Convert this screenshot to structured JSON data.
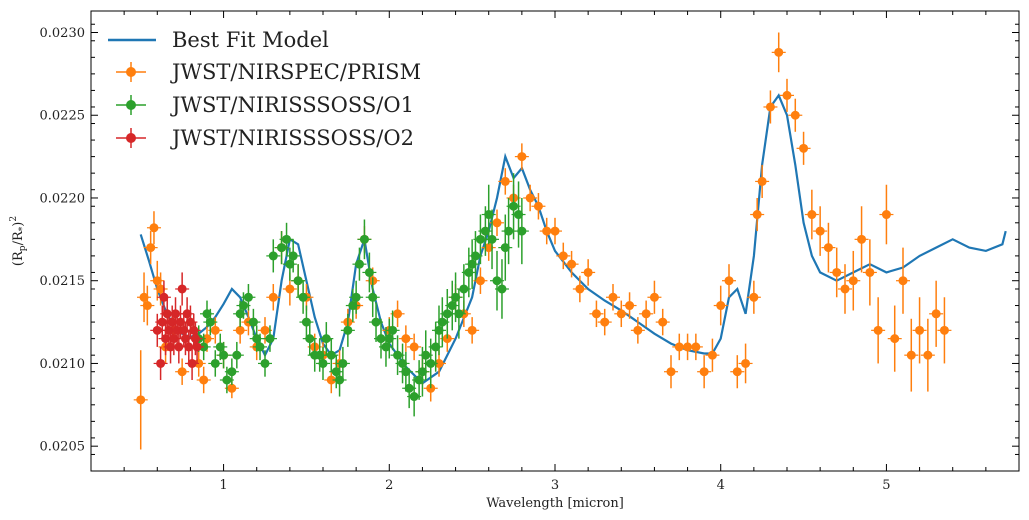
{
  "chart_data": {
    "type": "scatter",
    "xlabel": "Wavelength [micron]",
    "ylabel_main": "(R",
    "ylabel_sub_p": "p",
    "ylabel_mid": "/R",
    "ylabel_sub_star": "*",
    "ylabel_end": ")",
    "ylabel_sup": "2",
    "xlim": [
      0.2,
      5.8
    ],
    "ylim": [
      0.02035,
      0.02313
    ],
    "x_ticks": [
      1,
      2,
      3,
      4,
      5
    ],
    "x_tick_labels": [
      "1",
      "2",
      "3",
      "4",
      "5"
    ],
    "y_ticks": [
      0.0205,
      0.021,
      0.0215,
      0.022,
      0.0225,
      0.023
    ],
    "y_tick_labels": [
      "0.0205",
      "0.0210",
      "0.0215",
      "0.0220",
      "0.0225",
      "0.0230"
    ],
    "grid": false,
    "legend_position": "top-left",
    "model": {
      "name": "Best Fit Model",
      "color": "#1f77b4",
      "x": [
        0.5,
        0.55,
        0.6,
        0.65,
        0.7,
        0.75,
        0.8,
        0.85,
        0.9,
        0.95,
        1.0,
        1.05,
        1.1,
        1.15,
        1.2,
        1.25,
        1.3,
        1.35,
        1.4,
        1.45,
        1.5,
        1.55,
        1.6,
        1.65,
        1.7,
        1.75,
        1.8,
        1.85,
        1.9,
        1.95,
        2.0,
        2.1,
        2.2,
        2.3,
        2.4,
        2.5,
        2.55,
        2.6,
        2.65,
        2.7,
        2.75,
        2.8,
        2.85,
        2.9,
        2.95,
        3.0,
        3.1,
        3.2,
        3.3,
        3.4,
        3.5,
        3.6,
        3.7,
        3.8,
        3.9,
        3.95,
        4.0,
        4.05,
        4.1,
        4.15,
        4.2,
        4.25,
        4.3,
        4.35,
        4.4,
        4.45,
        4.5,
        4.55,
        4.6,
        4.7,
        4.8,
        4.9,
        5.0,
        5.1,
        5.2,
        5.3,
        5.4,
        5.5,
        5.6,
        5.7,
        5.72
      ],
      "y": [
        0.02178,
        0.02162,
        0.02145,
        0.02132,
        0.02122,
        0.02118,
        0.02116,
        0.02118,
        0.02122,
        0.02128,
        0.02136,
        0.02145,
        0.0214,
        0.02128,
        0.02115,
        0.02105,
        0.02115,
        0.0215,
        0.02175,
        0.02172,
        0.0215,
        0.02128,
        0.02112,
        0.02105,
        0.02108,
        0.02125,
        0.0216,
        0.02175,
        0.02145,
        0.02125,
        0.02112,
        0.02098,
        0.02088,
        0.02095,
        0.02115,
        0.0214,
        0.02165,
        0.0218,
        0.022,
        0.02225,
        0.02212,
        0.02218,
        0.02205,
        0.02195,
        0.0218,
        0.02168,
        0.02155,
        0.02145,
        0.02138,
        0.02132,
        0.02125,
        0.02118,
        0.02112,
        0.02108,
        0.02106,
        0.02106,
        0.02115,
        0.0214,
        0.02145,
        0.0213,
        0.02165,
        0.0222,
        0.02255,
        0.02262,
        0.0225,
        0.0222,
        0.02185,
        0.02165,
        0.02155,
        0.0215,
        0.02155,
        0.0216,
        0.02155,
        0.02158,
        0.02165,
        0.0217,
        0.02175,
        0.0217,
        0.02168,
        0.02172,
        0.0218
      ]
    },
    "series": [
      {
        "name": "JWST/NIRSPEC/PRISM",
        "color": "#ff7f0e",
        "x": [
          0.5,
          0.52,
          0.54,
          0.56,
          0.58,
          0.6,
          0.62,
          0.65,
          0.7,
          0.75,
          0.85,
          0.88,
          0.9,
          0.95,
          1.0,
          1.05,
          1.1,
          1.15,
          1.2,
          1.25,
          1.3,
          1.35,
          1.4,
          1.45,
          1.5,
          1.55,
          1.6,
          1.65,
          1.7,
          1.75,
          1.8,
          1.85,
          1.9,
          2.0,
          2.05,
          2.1,
          2.15,
          2.2,
          2.25,
          2.3,
          2.35,
          2.4,
          2.45,
          2.5,
          2.55,
          2.6,
          2.65,
          2.7,
          2.75,
          2.8,
          2.85,
          2.9,
          2.95,
          3.0,
          3.05,
          3.1,
          3.15,
          3.2,
          3.25,
          3.3,
          3.35,
          3.4,
          3.45,
          3.5,
          3.55,
          3.6,
          3.65,
          3.7,
          3.75,
          3.8,
          3.85,
          3.9,
          3.95,
          4.0,
          4.05,
          4.1,
          4.15,
          4.2,
          4.22,
          4.25,
          4.3,
          4.35,
          4.4,
          4.45,
          4.5,
          4.55,
          4.6,
          4.65,
          4.7,
          4.75,
          4.8,
          4.85,
          4.9,
          4.95,
          5.0,
          5.05,
          5.1,
          5.15,
          5.2,
          5.25,
          5.3,
          5.35
        ],
        "y": [
          0.02078,
          0.0214,
          0.02135,
          0.0217,
          0.02182,
          0.0215,
          0.02145,
          0.0211,
          0.0212,
          0.02095,
          0.021,
          0.0209,
          0.02115,
          0.0212,
          0.02105,
          0.02085,
          0.0212,
          0.02125,
          0.0211,
          0.0212,
          0.0214,
          0.0217,
          0.02145,
          0.0215,
          0.0214,
          0.0211,
          0.02105,
          0.0209,
          0.021,
          0.02125,
          0.02135,
          0.02175,
          0.0215,
          0.0212,
          0.0213,
          0.02115,
          0.0211,
          0.02095,
          0.02085,
          0.021,
          0.02115,
          0.0214,
          0.0213,
          0.0212,
          0.0215,
          0.0217,
          0.02185,
          0.0221,
          0.022,
          0.02225,
          0.022,
          0.02195,
          0.0218,
          0.0218,
          0.02165,
          0.0216,
          0.02145,
          0.02155,
          0.0213,
          0.02125,
          0.0214,
          0.0213,
          0.02135,
          0.0212,
          0.0213,
          0.0214,
          0.02125,
          0.02095,
          0.0211,
          0.0211,
          0.0211,
          0.02095,
          0.02105,
          0.02135,
          0.0215,
          0.02095,
          0.021,
          0.0214,
          0.0219,
          0.0221,
          0.02255,
          0.02288,
          0.02262,
          0.0225,
          0.0223,
          0.0219,
          0.0218,
          0.0217,
          0.02155,
          0.02145,
          0.0215,
          0.02175,
          0.02155,
          0.0212,
          0.0219,
          0.02115,
          0.0215,
          0.02105,
          0.0212,
          0.02105,
          0.0213,
          0.0212
        ],
        "yerr": [
          0.0003,
          0.00015,
          0.00012,
          0.0001,
          0.0001,
          0.00012,
          0.0001,
          0.0001,
          0.0001,
          8e-05,
          8e-05,
          8e-05,
          8e-05,
          8e-05,
          8e-05,
          6e-05,
          8e-05,
          8e-05,
          8e-05,
          8e-05,
          8e-05,
          0.0001,
          0.0001,
          0.0001,
          8e-05,
          8e-05,
          8e-05,
          8e-05,
          8e-05,
          8e-05,
          8e-05,
          8e-05,
          8e-05,
          8e-05,
          8e-05,
          8e-05,
          8e-05,
          8e-05,
          8e-05,
          8e-05,
          8e-05,
          8e-05,
          8e-05,
          8e-05,
          8e-05,
          8e-05,
          8e-05,
          8e-05,
          8e-05,
          8e-05,
          8e-05,
          8e-05,
          8e-05,
          8e-05,
          8e-05,
          8e-05,
          8e-05,
          8e-05,
          8e-05,
          8e-05,
          8e-05,
          8e-05,
          8e-05,
          8e-05,
          8e-05,
          0.0001,
          8e-05,
          0.0001,
          8e-05,
          8e-05,
          8e-05,
          0.0001,
          0.0001,
          0.00012,
          0.0001,
          0.0001,
          0.00012,
          0.0001,
          0.0001,
          0.0001,
          0.0001,
          0.00012,
          0.0001,
          0.0001,
          0.0001,
          0.00015,
          0.00015,
          0.00015,
          0.00015,
          0.00015,
          0.00018,
          0.0002,
          0.0002,
          0.0002,
          0.00018,
          0.0002,
          0.0002,
          0.00022,
          0.0002,
          0.00022,
          0.0002,
          0.0002
        ]
      },
      {
        "name": "JWST/NIRISSSOSS/O1",
        "color": "#2ca02c",
        "x": [
          0.85,
          0.88,
          0.9,
          0.92,
          0.95,
          0.98,
          1.0,
          1.02,
          1.05,
          1.08,
          1.1,
          1.12,
          1.15,
          1.18,
          1.2,
          1.22,
          1.25,
          1.28,
          1.3,
          1.35,
          1.38,
          1.4,
          1.42,
          1.45,
          1.48,
          1.5,
          1.52,
          1.55,
          1.58,
          1.6,
          1.62,
          1.65,
          1.68,
          1.7,
          1.72,
          1.75,
          1.78,
          1.8,
          1.82,
          1.85,
          1.88,
          1.9,
          1.92,
          1.95,
          1.98,
          2.0,
          2.02,
          2.05,
          2.08,
          2.1,
          2.12,
          2.15,
          2.18,
          2.2,
          2.22,
          2.25,
          2.28,
          2.3,
          2.32,
          2.35,
          2.38,
          2.4,
          2.42,
          2.45,
          2.48,
          2.5,
          2.52,
          2.55,
          2.58,
          2.6,
          2.62,
          2.65,
          2.68,
          2.7,
          2.72,
          2.75,
          2.78,
          2.8
        ],
        "y": [
          0.02115,
          0.0211,
          0.0213,
          0.02125,
          0.021,
          0.0211,
          0.02105,
          0.0209,
          0.02095,
          0.02105,
          0.0213,
          0.02135,
          0.0214,
          0.02125,
          0.02115,
          0.0211,
          0.021,
          0.02115,
          0.02165,
          0.0217,
          0.02175,
          0.0216,
          0.02165,
          0.0215,
          0.0214,
          0.02125,
          0.02115,
          0.02105,
          0.02105,
          0.021,
          0.02115,
          0.02105,
          0.02095,
          0.0209,
          0.021,
          0.0212,
          0.02135,
          0.0214,
          0.0216,
          0.02175,
          0.02155,
          0.0214,
          0.02125,
          0.02115,
          0.0211,
          0.02115,
          0.0212,
          0.02105,
          0.021,
          0.02095,
          0.02085,
          0.0208,
          0.0209,
          0.02095,
          0.02105,
          0.021,
          0.0211,
          0.0212,
          0.02125,
          0.0213,
          0.02135,
          0.0214,
          0.0213,
          0.02145,
          0.02155,
          0.0216,
          0.02165,
          0.02175,
          0.0218,
          0.0219,
          0.02175,
          0.0215,
          0.02145,
          0.0217,
          0.0218,
          0.02195,
          0.0219,
          0.0218
        ],
        "yerr": [
          8e-05,
          8e-05,
          8e-05,
          8e-05,
          8e-05,
          8e-05,
          8e-05,
          8e-05,
          8e-05,
          8e-05,
          8e-05,
          8e-05,
          8e-05,
          8e-05,
          8e-05,
          8e-05,
          8e-05,
          8e-05,
          0.0001,
          0.0001,
          0.0001,
          0.0001,
          0.0001,
          0.0001,
          0.0001,
          0.0001,
          0.0001,
          0.0001,
          0.0001,
          0.0001,
          0.0001,
          0.0001,
          0.0001,
          0.0001,
          0.0001,
          0.0001,
          0.0001,
          0.0001,
          0.0001,
          0.00012,
          0.00012,
          0.00012,
          0.00012,
          0.00012,
          0.00012,
          0.00012,
          0.00012,
          0.00012,
          0.00012,
          0.00012,
          0.00012,
          0.00012,
          0.00012,
          0.00015,
          0.00015,
          0.00015,
          0.00015,
          0.00015,
          0.00015,
          0.00015,
          0.00015,
          0.00015,
          0.00015,
          0.00015,
          0.00015,
          0.00015,
          0.00015,
          0.00015,
          0.00015,
          0.00018,
          0.00018,
          0.00018,
          0.00018,
          0.0002,
          0.0002,
          0.0002,
          0.0002,
          0.0002
        ]
      },
      {
        "name": "JWST/NIRISSSOSS/O2",
        "color": "#d62728",
        "x": [
          0.6,
          0.62,
          0.63,
          0.64,
          0.65,
          0.66,
          0.67,
          0.68,
          0.69,
          0.7,
          0.71,
          0.72,
          0.73,
          0.74,
          0.75,
          0.76,
          0.77,
          0.78,
          0.79,
          0.8,
          0.81,
          0.82,
          0.83,
          0.84
        ],
        "y": [
          0.0212,
          0.021,
          0.02125,
          0.0214,
          0.02115,
          0.0213,
          0.0212,
          0.0211,
          0.02125,
          0.02115,
          0.0213,
          0.0212,
          0.0211,
          0.02125,
          0.02145,
          0.0212,
          0.02115,
          0.0213,
          0.0211,
          0.02125,
          0.021,
          0.0212,
          0.02115,
          0.0211
        ],
        "yerr": [
          0.0001,
          0.0001,
          0.0001,
          0.0001,
          0.0001,
          0.0001,
          0.0001,
          0.0001,
          0.0001,
          0.0001,
          0.0001,
          0.0001,
          0.0001,
          0.0001,
          0.0001,
          0.0001,
          0.0001,
          0.0001,
          0.0001,
          0.0001,
          0.0001,
          0.0001,
          0.0001,
          0.0001
        ]
      }
    ]
  }
}
